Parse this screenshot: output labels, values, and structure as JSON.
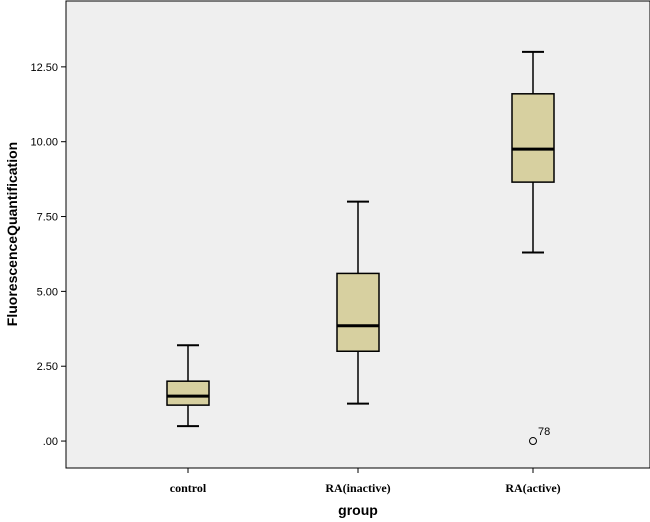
{
  "chart_data": {
    "type": "boxplot",
    "xlabel": "group",
    "ylabel": "FluorescenceQuantification",
    "ylim": [
      -0.9,
      14.7
    ],
    "yticks": [
      0,
      2.5,
      5,
      7.5,
      10,
      12.5
    ],
    "ytick_labels": [
      ".00",
      "2.50",
      "5.00",
      "7.50",
      "10.00",
      "12.50"
    ],
    "grid": false,
    "plot_background": "#efefef",
    "box_fill": "#d7d0a0",
    "categories": [
      "control",
      "RA(inactive)",
      "RA(active)"
    ],
    "boxes": [
      {
        "category": "control",
        "whisker_low": 0.5,
        "q1": 1.2,
        "median": 1.5,
        "q3": 2.0,
        "whisker_high": 3.2,
        "outliers": []
      },
      {
        "category": "RA(inactive)",
        "whisker_low": 1.25,
        "q1": 3.0,
        "median": 3.85,
        "q3": 5.6,
        "whisker_high": 8.0,
        "outliers": []
      },
      {
        "category": "RA(active)",
        "whisker_low": 6.3,
        "q1": 8.65,
        "median": 9.75,
        "q3": 11.6,
        "whisker_high": 13.0,
        "outliers": [
          {
            "value": 0.0,
            "label": "78"
          }
        ]
      }
    ]
  }
}
